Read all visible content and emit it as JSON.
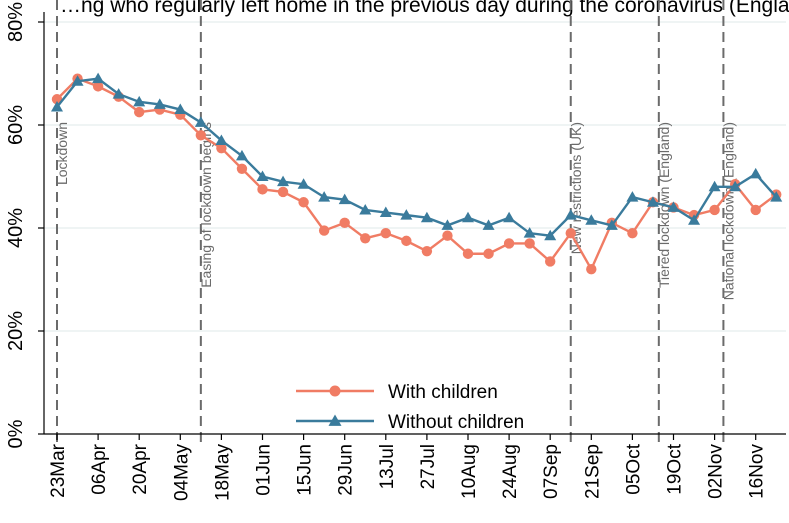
{
  "chart_data": {
    "type": "line",
    "title": "…ng who regularly left home in the previous day during the coronavirus (England)",
    "x": [
      "23Mar",
      "30Mar",
      "06Apr",
      "13Apr",
      "20Apr",
      "27Apr",
      "04May",
      "11May",
      "18May",
      "25May",
      "01Jun",
      "08Jun",
      "15Jun",
      "22Jun",
      "29Jun",
      "06Jul",
      "13Jul",
      "20Jul",
      "27Jul",
      "03Aug",
      "10Aug",
      "17Aug",
      "24Aug",
      "31Aug",
      "07Sep",
      "14Sep",
      "21Sep",
      "28Sep",
      "05Oct",
      "12Oct",
      "19Oct",
      "26Oct",
      "02Nov",
      "09Nov",
      "16Nov",
      "23Nov"
    ],
    "x_tick_labels": [
      "23Mar",
      "06Apr",
      "20Apr",
      "04May",
      "18May",
      "01Jun",
      "15Jun",
      "29Jun",
      "13Jul",
      "27Jul",
      "10Aug",
      "24Aug",
      "07Sep",
      "21Sep",
      "05Oct",
      "19Oct",
      "02Nov",
      "16Nov"
    ],
    "y_ticks": [
      0,
      20,
      40,
      60,
      80
    ],
    "y_tick_labels": [
      "0%",
      "20%",
      "40%",
      "60%",
      "80%"
    ],
    "ylim": [
      0,
      80
    ],
    "grid": "horizontal",
    "legend_position": "bottom-center",
    "series": [
      {
        "name": "With children",
        "color": "#f07c64",
        "marker": "circle",
        "values": [
          65,
          69,
          67.5,
          65.5,
          62.5,
          63,
          62,
          58,
          55.5,
          51.5,
          47.5,
          47,
          45,
          39.5,
          41,
          38,
          39,
          37.5,
          35.5,
          38.5,
          35,
          35,
          37,
          37,
          33.5,
          39,
          32,
          41,
          39,
          45,
          44,
          42.5,
          43.5,
          48.5,
          43.5,
          46.5
        ]
      },
      {
        "name": "Without children",
        "color": "#3a7b9c",
        "marker": "triangle",
        "values": [
          63.5,
          68.5,
          69,
          66,
          64.5,
          64,
          63,
          60.5,
          57,
          54,
          50,
          49,
          48.5,
          46,
          45.5,
          43.5,
          43,
          42.5,
          42,
          40.5,
          42,
          40.5,
          42,
          39,
          38.5,
          42.5,
          41.5,
          40.5,
          46,
          45,
          44,
          41.5,
          48,
          48,
          50.5,
          46
        ]
      }
    ],
    "events": [
      {
        "x": "23Mar",
        "label": "Lockdown"
      },
      {
        "x": "11May",
        "label": "Easing of lockdown begins"
      },
      {
        "x": "14Sep",
        "label": "New restrictions (UK)"
      },
      {
        "x": "14Oct",
        "label": "Tiered lockdown (England)"
      },
      {
        "x": "05Nov",
        "label": "National lockdown (England)"
      }
    ]
  }
}
